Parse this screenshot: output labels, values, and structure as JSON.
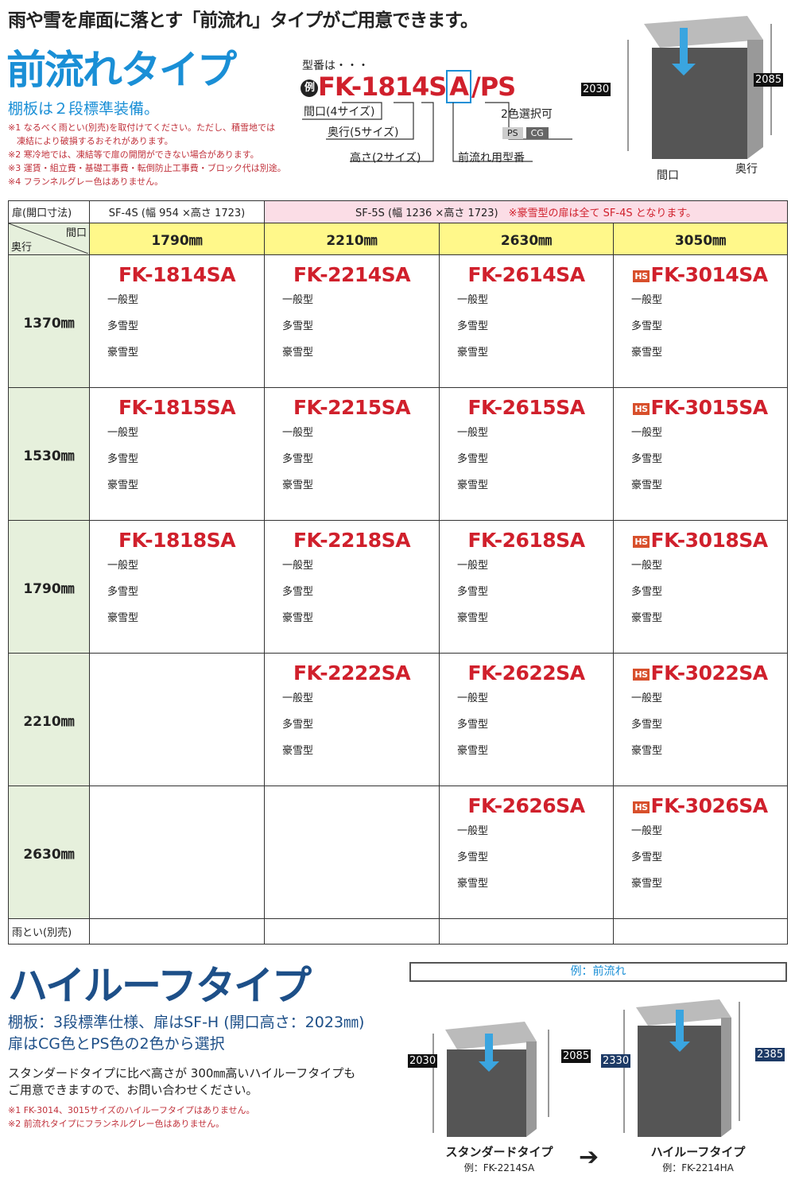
{
  "header": {
    "headline": "雨や雪を扉面に落とす「前流れ」タイプがご用意できます。",
    "title": "前流れタイプ",
    "subtitle": "棚板は２段標準装備。",
    "notes": [
      "※1 なるべく雨とい(別売)を取付けてください。ただし、積雪地では",
      "　凍結により破損するおそれがあります。",
      "※2 寒冷地では、凍結等で扉の開閉ができない場合があります。",
      "※3 運賃・組立費・基礎工事費・転倒防止工事費・ブロック代は別途。",
      "※4 フランネルグレー色はありません。"
    ]
  },
  "model_diagram": {
    "label": "型番は・・・",
    "example_badge": "例",
    "code_prefix": "FK-1814S",
    "code_a": "A",
    "code_suffix": "/PS",
    "width_label": "間口(4サイズ)",
    "depth_label": "奥行(5サイズ)",
    "height_label": "高さ(2サイズ)",
    "front_label": "前流れ用型番",
    "color_label": "2色選択可",
    "colors": [
      "PS",
      "CG"
    ]
  },
  "hero_dims": {
    "h1": "2030",
    "h2": "2085",
    "width": "間口",
    "depth": "奥行"
  },
  "table": {
    "door_label": "扉(開口寸法)",
    "door_4s": "SF-4S (幅 954 ×高さ 1723)",
    "door_5s": "SF-5S (幅 1236 ×高さ 1723)",
    "door_note": "※豪雪型の扉は全て SF-4S となります。",
    "corner_width": "間口",
    "corner_depth": "奥行",
    "widths": [
      "1790㎜",
      "2210㎜",
      "2630㎜",
      "3050㎜"
    ],
    "types": [
      "一般型",
      "多雪型",
      "豪雪型"
    ],
    "hs_badge": "HS",
    "rows": [
      {
        "depth": "1370㎜",
        "models": [
          "FK-1814SA",
          "FK-2214SA",
          "FK-2614SA",
          "FK-3014SA"
        ]
      },
      {
        "depth": "1530㎜",
        "models": [
          "FK-1815SA",
          "FK-2215SA",
          "FK-2615SA",
          "FK-3015SA"
        ]
      },
      {
        "depth": "1790㎜",
        "models": [
          "FK-1818SA",
          "FK-2218SA",
          "FK-2618SA",
          "FK-3018SA"
        ]
      },
      {
        "depth": "2210㎜",
        "models": [
          "",
          "FK-2222SA",
          "FK-2622SA",
          "FK-3022SA"
        ]
      },
      {
        "depth": "2630㎜",
        "models": [
          "",
          "",
          "FK-2626SA",
          "FK-3026SA"
        ]
      }
    ],
    "gutter_label": "雨とい(別売)"
  },
  "highroof": {
    "title": "ハイルーフタイプ",
    "sub1": "棚板：3段標準仕様、扉はSF-H (開口高さ：2023㎜)",
    "sub2": "扉はCG色とPS色の2色から選択",
    "desc1": "スタンダードタイプに比べ高さが 300㎜高いハイルーフタイプも",
    "desc2": "ご用意できますので、お問い合わせください。",
    "note1": "※1 FK-3014、3015サイズのハイルーフタイプはありません。",
    "note2": "※2 前流れタイプにフランネルグレー色はありません。",
    "example_header": "例：前流れ",
    "std_caption": "スタンダードタイプ",
    "std_example": "例：FK-2214SA",
    "std_dims": [
      "2030",
      "2085"
    ],
    "high_caption": "ハイルーフタイプ",
    "high_example": "例：FK-2214HA",
    "high_dims": [
      "2330",
      "2385"
    ]
  },
  "colors": {
    "accent_blue": "#1a8fd6",
    "navy": "#1d4f88",
    "red": "#d0202c",
    "yellow": "#fff88a",
    "pink": "#fbdde6",
    "green": "#e6f0dc"
  }
}
